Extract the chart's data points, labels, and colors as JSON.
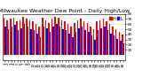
{
  "title": "Milwaukee Weather Dew Point - Daily High/Low",
  "high_values": [
    72,
    68,
    70,
    72,
    65,
    68,
    75,
    70,
    68,
    65,
    60,
    55,
    72,
    68,
    62,
    70,
    75,
    72,
    68,
    65,
    60,
    55,
    62,
    68,
    70,
    65,
    62,
    55,
    50,
    65,
    68,
    70,
    65,
    60,
    55,
    50,
    45,
    40
  ],
  "low_values": [
    55,
    50,
    55,
    58,
    48,
    52,
    60,
    55,
    50,
    48,
    42,
    35,
    55,
    52,
    45,
    55,
    60,
    55,
    50,
    48,
    42,
    35,
    45,
    52,
    55,
    48,
    45,
    38,
    30,
    48,
    52,
    55,
    48,
    42,
    38,
    32,
    28,
    22
  ],
  "high_color": "#ff0000",
  "low_color": "#0000ff",
  "background_color": "#ffffff",
  "ylim_min": -10,
  "ylim_max": 80,
  "yticks": [
    10,
    20,
    30,
    40,
    50,
    60,
    70,
    80
  ],
  "grid_color": "#cccccc",
  "title_fontsize": 4.5,
  "tick_fontsize": 3.0,
  "legend_fontsize": 3.5
}
